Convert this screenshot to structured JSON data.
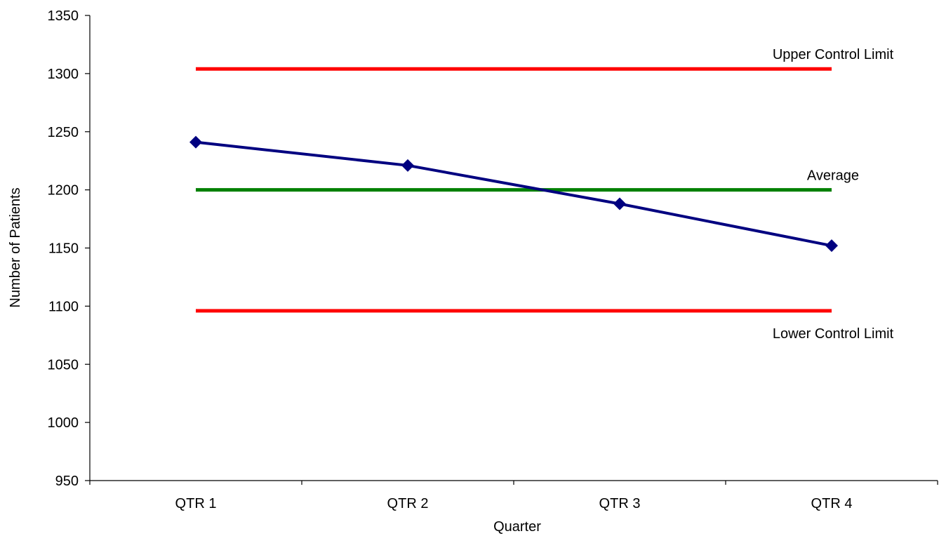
{
  "chart_data": {
    "type": "line",
    "title": "",
    "xlabel": "Quarter",
    "ylabel": "Number of Patients",
    "categories": [
      "QTR 1",
      "QTR 2",
      "QTR 3",
      "QTR 4"
    ],
    "ylim": [
      950,
      1350
    ],
    "yticks": [
      950,
      1000,
      1050,
      1100,
      1150,
      1200,
      1250,
      1300,
      1350
    ],
    "grid": false,
    "legend": "none",
    "series": [
      {
        "values": [
          1241,
          1221,
          1188,
          1152
        ],
        "color": "#000080",
        "marker": "diamond"
      }
    ],
    "reference_lines": [
      {
        "label": "Upper Control Limit",
        "value": 1304,
        "color": "#ff0000",
        "label_position": "above"
      },
      {
        "label": "Average",
        "value": 1200,
        "color": "#008000",
        "label_position": "above"
      },
      {
        "label": "Lower Control Limit",
        "value": 1096,
        "color": "#ff0000",
        "label_position": "below"
      }
    ]
  }
}
